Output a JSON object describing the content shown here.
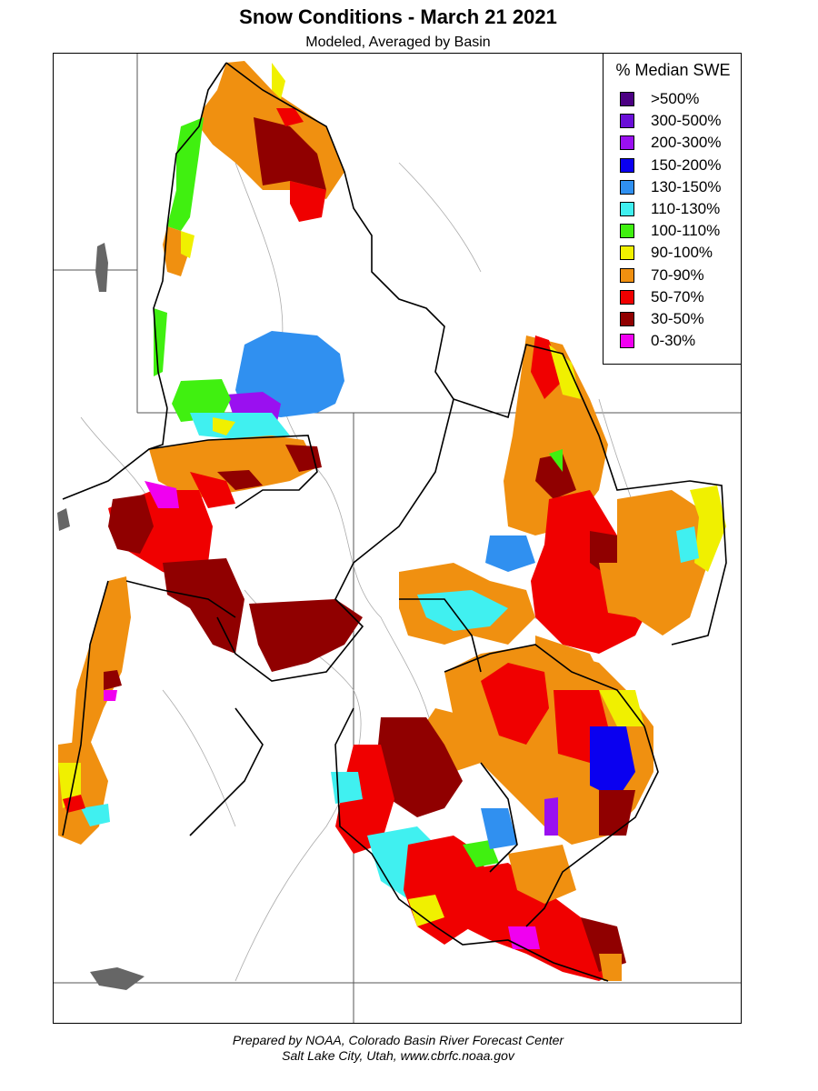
{
  "title": "Snow Conditions - March 21 2021",
  "subtitle": "Modeled, Averaged by Basin",
  "legend": {
    "title": "% Median SWE",
    "items": [
      {
        "label": ">500%",
        "color": "#4b0082"
      },
      {
        "label": "300-500%",
        "color": "#6a0fd8"
      },
      {
        "label": "200-300%",
        "color": "#9a10f0"
      },
      {
        "label": "150-200%",
        "color": "#0a00f0"
      },
      {
        "label": "130-150%",
        "color": "#3090f0"
      },
      {
        "label": "110-130%",
        "color": "#40f0f0"
      },
      {
        "label": "100-110%",
        "color": "#40f010"
      },
      {
        "label": "90-100%",
        "color": "#f0f000"
      },
      {
        "label": "70-90%",
        "color": "#f09010"
      },
      {
        "label": "50-70%",
        "color": "#f00000"
      },
      {
        "label": "30-50%",
        "color": "#900000"
      },
      {
        "label": "0-30%",
        "color": "#f000f0"
      }
    ]
  },
  "footer": {
    "line1": "Prepared by NOAA, Colorado Basin River Forecast Center",
    "line2": "Salt Lake City, Utah, www.cbrfc.noaa.gov"
  }
}
